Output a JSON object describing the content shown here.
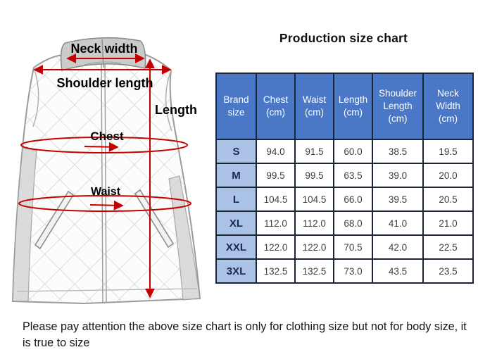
{
  "title": "Production size chart",
  "diagram": {
    "labels": {
      "neck_width": "Neck width",
      "shoulder_length": "Shoulder length",
      "length": "Length",
      "chest": "Chest",
      "waist": "Waist"
    }
  },
  "table": {
    "headers": [
      "Brand size",
      "Chest (cm)",
      "Waist (cm)",
      "Length (cm)",
      "Shoulder Length (cm)",
      "Neck Width (cm)"
    ],
    "rows": [
      {
        "size": "S",
        "values": [
          "94.0",
          "91.5",
          "60.0",
          "38.5",
          "19.5"
        ]
      },
      {
        "size": "M",
        "values": [
          "99.5",
          "99.5",
          "63.5",
          "39.0",
          "20.0"
        ]
      },
      {
        "size": "L",
        "values": [
          "104.5",
          "104.5",
          "66.0",
          "39.5",
          "20.5"
        ]
      },
      {
        "size": "XL",
        "values": [
          "112.0",
          "112.0",
          "68.0",
          "41.0",
          "21.0"
        ]
      },
      {
        "size": "XXL",
        "values": [
          "122.0",
          "122.0",
          "70.5",
          "42.0",
          "22.5"
        ]
      },
      {
        "size": "3XL",
        "values": [
          "132.5",
          "132.5",
          "73.0",
          "43.5",
          "23.5"
        ]
      }
    ]
  },
  "chart_data": {
    "type": "table",
    "title": "Production size chart",
    "columns": [
      "Brand size",
      "Chest (cm)",
      "Waist (cm)",
      "Length (cm)",
      "Shoulder Length (cm)",
      "Neck Width (cm)"
    ],
    "rows": [
      [
        "S",
        94.0,
        91.5,
        60.0,
        38.5,
        19.5
      ],
      [
        "M",
        99.5,
        99.5,
        63.5,
        39.0,
        20.0
      ],
      [
        "L",
        104.5,
        104.5,
        66.0,
        39.5,
        20.5
      ],
      [
        "XL",
        112.0,
        112.0,
        68.0,
        41.0,
        21.0
      ],
      [
        "XXL",
        122.0,
        122.0,
        70.5,
        42.0,
        22.5
      ],
      [
        "3XL",
        132.5,
        132.5,
        73.0,
        43.5,
        23.5
      ]
    ]
  },
  "note": "Please pay attention the above size chart is only for clothing size but not for body size, it is true to size",
  "colors": {
    "header_bg": "#4A78C6",
    "size_column_bg": "#A9C2E6",
    "table_border": "#1C2533",
    "annotation_red": "#C40000"
  }
}
